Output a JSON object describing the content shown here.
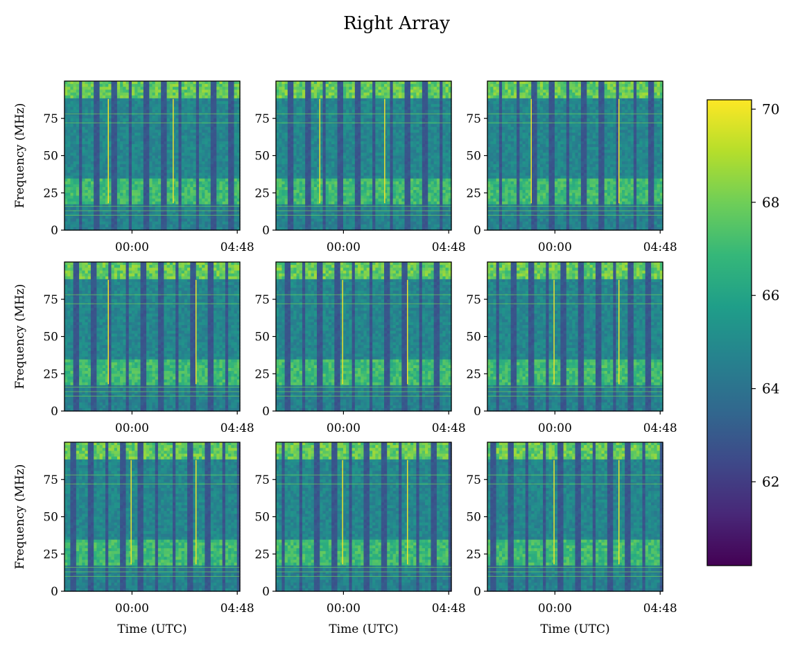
{
  "figure": {
    "title": "Right Array"
  },
  "chart_data": {
    "type": "heatmap",
    "title": "Right Array",
    "layout": "3x3 grid of spectrograms",
    "colormap": "viridis",
    "colorbar": {
      "range": [
        60.2,
        70.2
      ],
      "ticks": [
        "62",
        "64",
        "66",
        "68",
        "70"
      ]
    },
    "xlabel": "Time (UTC)",
    "ylabel": "Frequency (MHz)",
    "x_ticks": [
      "00:00",
      "04:48"
    ],
    "y_ticks": [
      "0",
      "25",
      "50",
      "75"
    ],
    "ylim": [
      0,
      100
    ],
    "panels": [
      {
        "row": 1,
        "col": 1,
        "bright_lines_frac": [
          0.25,
          0.62
        ]
      },
      {
        "row": 1,
        "col": 2,
        "bright_lines_frac": [
          0.25,
          0.62
        ]
      },
      {
        "row": 1,
        "col": 3,
        "bright_lines_frac": [
          0.25,
          0.75
        ]
      },
      {
        "row": 2,
        "col": 1,
        "bright_lines_frac": [
          0.25,
          0.75
        ]
      },
      {
        "row": 2,
        "col": 2,
        "bright_lines_frac": [
          0.38,
          0.75
        ]
      },
      {
        "row": 2,
        "col": 3,
        "bright_lines_frac": [
          0.38,
          0.75
        ]
      },
      {
        "row": 3,
        "col": 1,
        "bright_lines_frac": [
          0.38,
          0.75
        ]
      },
      {
        "row": 3,
        "col": 2,
        "bright_lines_frac": [
          0.38,
          0.75
        ]
      },
      {
        "row": 3,
        "col": 3,
        "bright_lines_frac": [
          0.38,
          0.75
        ]
      }
    ]
  },
  "colors": {
    "viridis": [
      "#440154",
      "#482878",
      "#3e4989",
      "#31688e",
      "#26828e",
      "#1f9e89",
      "#35b779",
      "#6ece58",
      "#b5de2b",
      "#fde725"
    ]
  }
}
